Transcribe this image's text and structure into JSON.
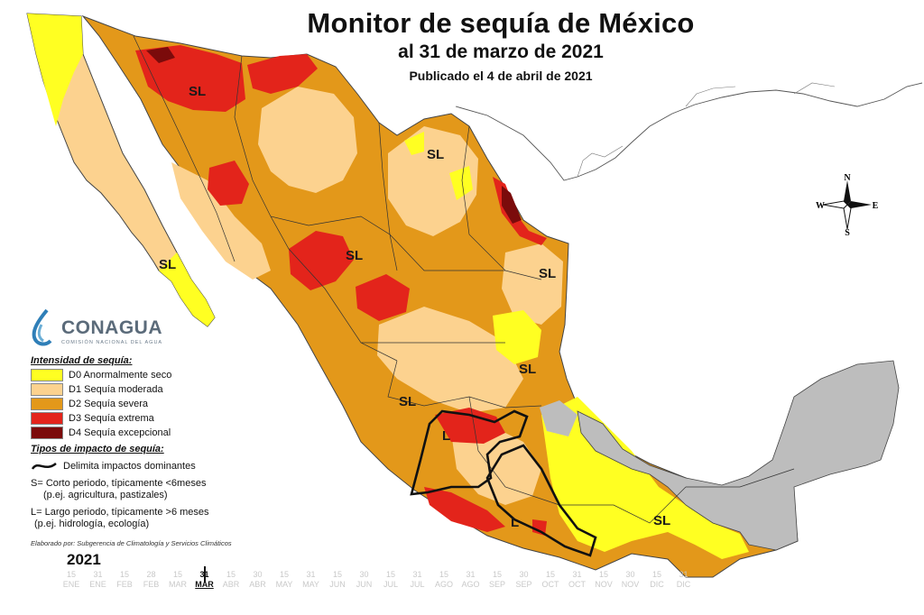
{
  "title": {
    "main": "Monitor de sequía de México",
    "date": "al 31 de marzo de 2021",
    "published": "Publicado el 4 de abril de 2021"
  },
  "colors": {
    "D0": "#ffff22",
    "D1": "#fcd28f",
    "D2": "#e3981a",
    "D3": "#e3241b",
    "D4": "#7b0b0b",
    "no_drought": "#bdbdbd",
    "impact_line": "#111111"
  },
  "legend": {
    "header": "Intensidad de sequía:",
    "items": [
      {
        "code": "D0",
        "label": "D0 Anormalmente seco",
        "color": "#ffff22"
      },
      {
        "code": "D1",
        "label": "D1 Sequía moderada",
        "color": "#fcd28f"
      },
      {
        "code": "D2",
        "label": "D2 Sequía severa",
        "color": "#e3981a"
      },
      {
        "code": "D3",
        "label": "D3 Sequía extrema",
        "color": "#e3241b"
      },
      {
        "code": "D4",
        "label": "D4 Sequía excepcional",
        "color": "#7b0b0b"
      }
    ]
  },
  "impacts": {
    "header": "Tipos de impacto de sequía:",
    "line_label": "Delimita impactos dominantes",
    "short_term": "S= Corto periodo, típicamente <6meses",
    "short_term_ex": "(p.ej. agricultura, pastizales)",
    "long_term": "L= Largo periodo, típicamente >6 meses",
    "long_term_ex": "(p.ej. hidrología, ecología)"
  },
  "credit": "Elaborado por: Subgerencia de Climatología y Servicios Climáticos",
  "logo": {
    "name": "CONAGUA",
    "subtitle": "COMISIÓN NACIONAL DEL AGUA"
  },
  "map_labels": {
    "sl": "SL",
    "l": "L"
  },
  "compass": {
    "n": "N",
    "s": "S",
    "e": "E",
    "w": "W"
  },
  "timeline": {
    "year": "2021",
    "current_index": 5,
    "ticks": [
      {
        "day": "15",
        "month": "ENE"
      },
      {
        "day": "31",
        "month": "ENE"
      },
      {
        "day": "15",
        "month": "FEB"
      },
      {
        "day": "28",
        "month": "FEB"
      },
      {
        "day": "15",
        "month": "MAR"
      },
      {
        "day": "31",
        "month": "MAR"
      },
      {
        "day": "15",
        "month": "ABR"
      },
      {
        "day": "30",
        "month": "ABR"
      },
      {
        "day": "15",
        "month": "MAY"
      },
      {
        "day": "31",
        "month": "MAY"
      },
      {
        "day": "15",
        "month": "JUN"
      },
      {
        "day": "30",
        "month": "JUN"
      },
      {
        "day": "15",
        "month": "JUL"
      },
      {
        "day": "31",
        "month": "JUL"
      },
      {
        "day": "15",
        "month": "AGO"
      },
      {
        "day": "31",
        "month": "AGO"
      },
      {
        "day": "15",
        "month": "SEP"
      },
      {
        "day": "30",
        "month": "SEP"
      },
      {
        "day": "15",
        "month": "OCT"
      },
      {
        "day": "31",
        "month": "OCT"
      },
      {
        "day": "15",
        "month": "NOV"
      },
      {
        "day": "30",
        "month": "NOV"
      },
      {
        "day": "15",
        "month": "DIC"
      },
      {
        "day": "31",
        "month": "DIC"
      }
    ]
  }
}
